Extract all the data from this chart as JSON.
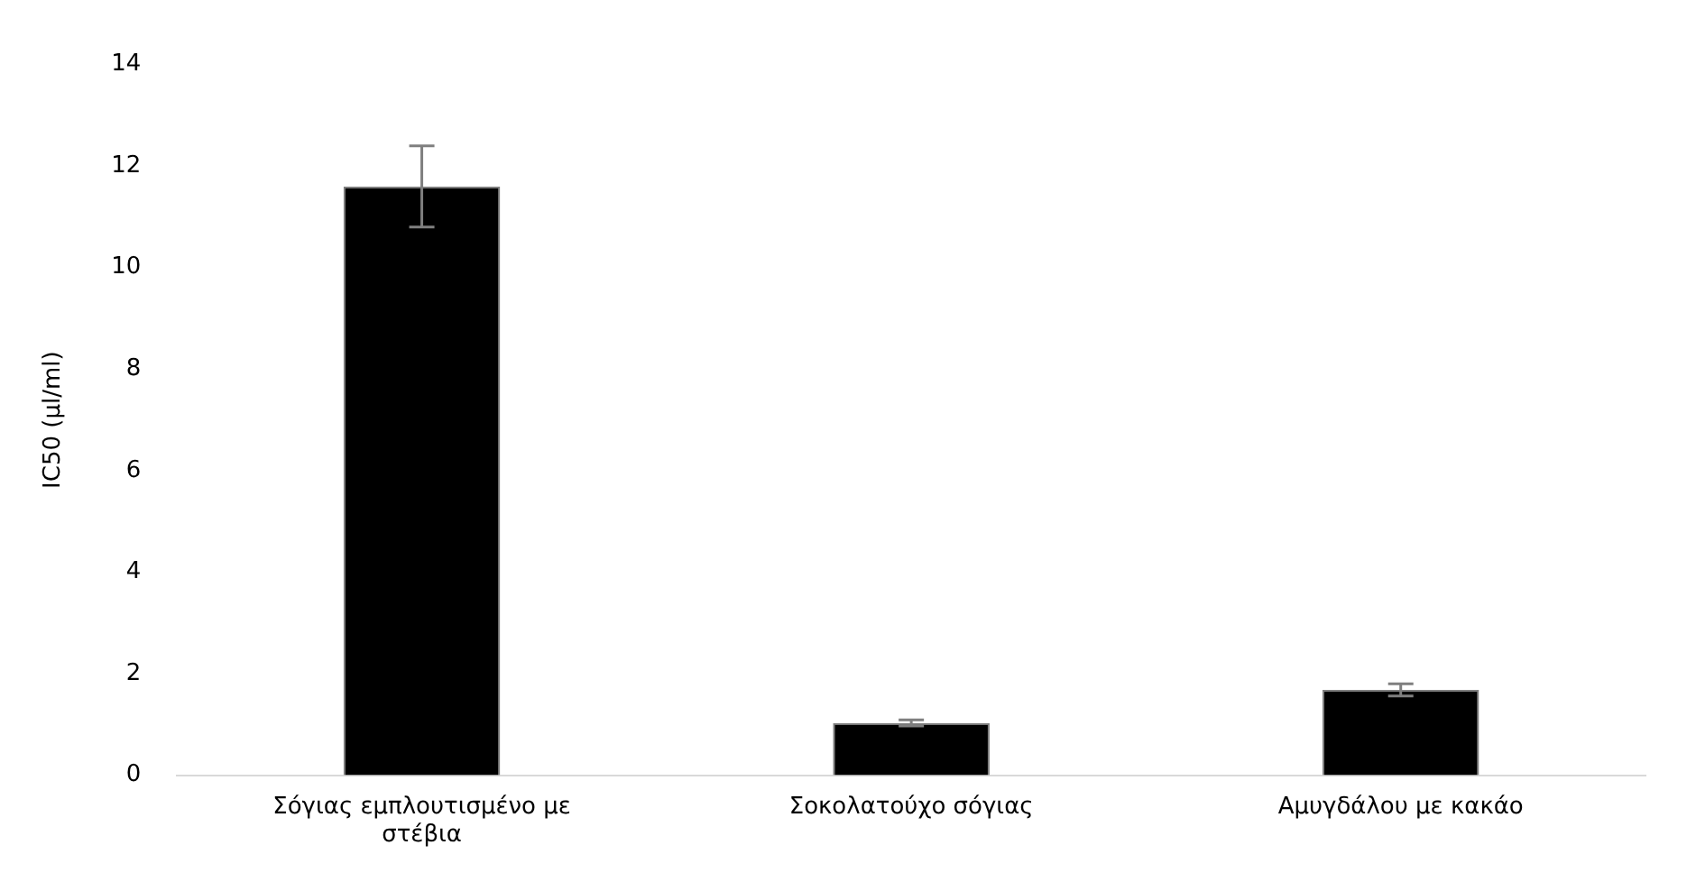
{
  "chart_data": {
    "type": "bar",
    "ylabel": "IC50 (μl/ml)",
    "categories": [
      "Σόγιας εμπλουτισμένο με στέβια",
      "Σοκολατούχο σόγιας",
      "Αμυγδάλου με κακάο"
    ],
    "values": [
      11.6,
      1.03,
      1.68
    ],
    "errors": [
      0.8,
      0.06,
      0.12
    ],
    "color": "#000000",
    "ylim": [
      0,
      14
    ],
    "yticks": [
      0,
      2,
      4,
      6,
      8,
      10,
      12,
      14
    ],
    "grid": false,
    "legend": false
  }
}
